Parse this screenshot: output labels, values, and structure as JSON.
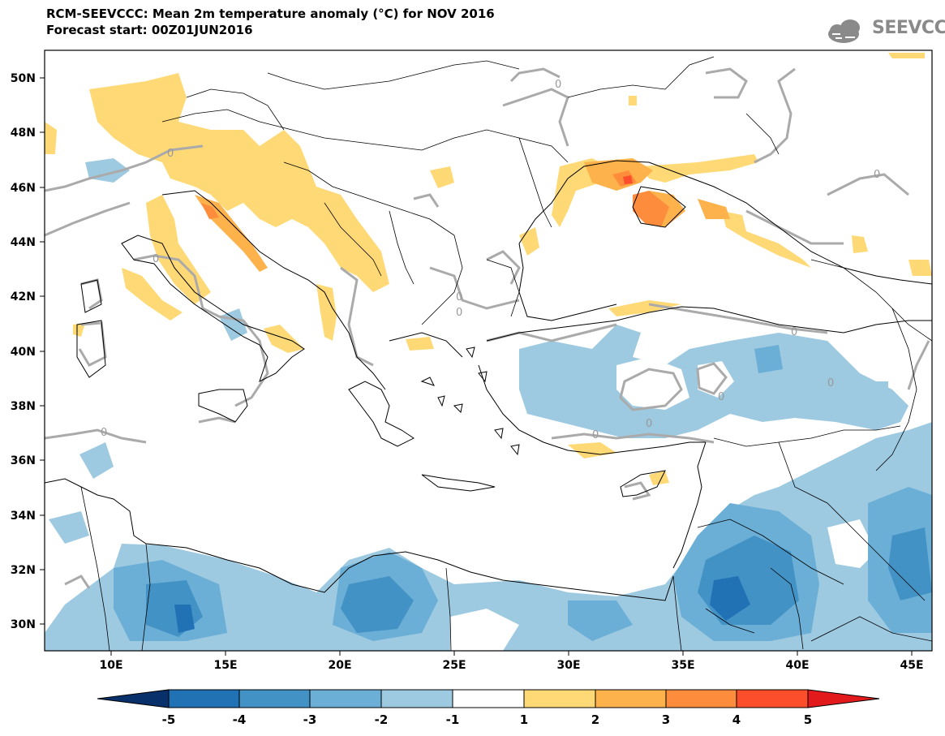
{
  "header": {
    "title_line1": "RCM-SEEVCCC: Mean 2m temperature anomaly (°C) for NOV 2016",
    "title_line2": "Forecast start: 00Z01JUN2016",
    "logo_text": "SEEVCCC"
  },
  "map": {
    "lon_ticks": [
      "10E",
      "15E",
      "20E",
      "25E",
      "30E",
      "35E",
      "40E",
      "45E"
    ],
    "lat_ticks": [
      "50N",
      "48N",
      "46N",
      "44N",
      "42N",
      "40N",
      "38N",
      "36N",
      "34N",
      "32N",
      "30N"
    ],
    "contour_label": "0"
  },
  "colorbar": {
    "labels": [
      "-5",
      "-4",
      "-3",
      "-2",
      "-1",
      "1",
      "2",
      "3",
      "4",
      "5"
    ],
    "colors": [
      "#08306b",
      "#2171b5",
      "#4292c6",
      "#6baed6",
      "#9ecae1",
      "#ffffff",
      "#fed976",
      "#feb24c",
      "#fd8d3c",
      "#fc4e2a",
      "#e31a1c"
    ]
  }
}
